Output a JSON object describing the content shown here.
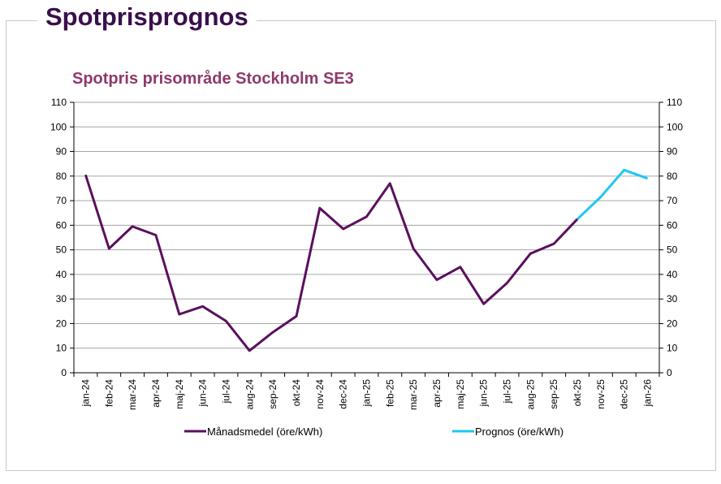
{
  "page": {
    "title": "Spotprisprognos"
  },
  "chart_data": {
    "type": "line",
    "title": "Spotpris prisområde Stockholm SE3",
    "xlabel": "",
    "ylabel": "",
    "ylim": [
      0,
      110
    ],
    "yticks": [
      0,
      10,
      20,
      30,
      40,
      50,
      60,
      70,
      80,
      90,
      100,
      110
    ],
    "grid": true,
    "legend_position": "bottom",
    "categories": [
      "jan-24",
      "feb-24",
      "mar-24",
      "apr-24",
      "maj-24",
      "jun-24",
      "jul-24",
      "aug-24",
      "sep-24",
      "okt-24",
      "nov-24",
      "dec-24",
      "jan-25",
      "feb-25",
      "mar-25",
      "apr-25",
      "maj-25",
      "jun-25",
      "jul-25",
      "aug-25",
      "sep-25",
      "okt-25",
      "nov-25",
      "dec-25",
      "jan-26"
    ],
    "series": [
      {
        "name": "Månadsmedel (öre/kWh)",
        "color": "#5b0f5e",
        "values": [
          80.5,
          50.5,
          59.5,
          56,
          23.8,
          27,
          21,
          9,
          16.5,
          23,
          67,
          58.5,
          63.5,
          77,
          50.5,
          37.8,
          43,
          28,
          36.5,
          48.5,
          52.5,
          62.5,
          null,
          null,
          null
        ]
      },
      {
        "name": "Prognos (öre/kWh)",
        "color": "#1ec8f0",
        "values": [
          null,
          null,
          null,
          null,
          null,
          null,
          null,
          null,
          null,
          null,
          null,
          null,
          null,
          null,
          null,
          null,
          null,
          null,
          null,
          null,
          null,
          62.5,
          71.5,
          82.5,
          79
        ]
      }
    ]
  }
}
